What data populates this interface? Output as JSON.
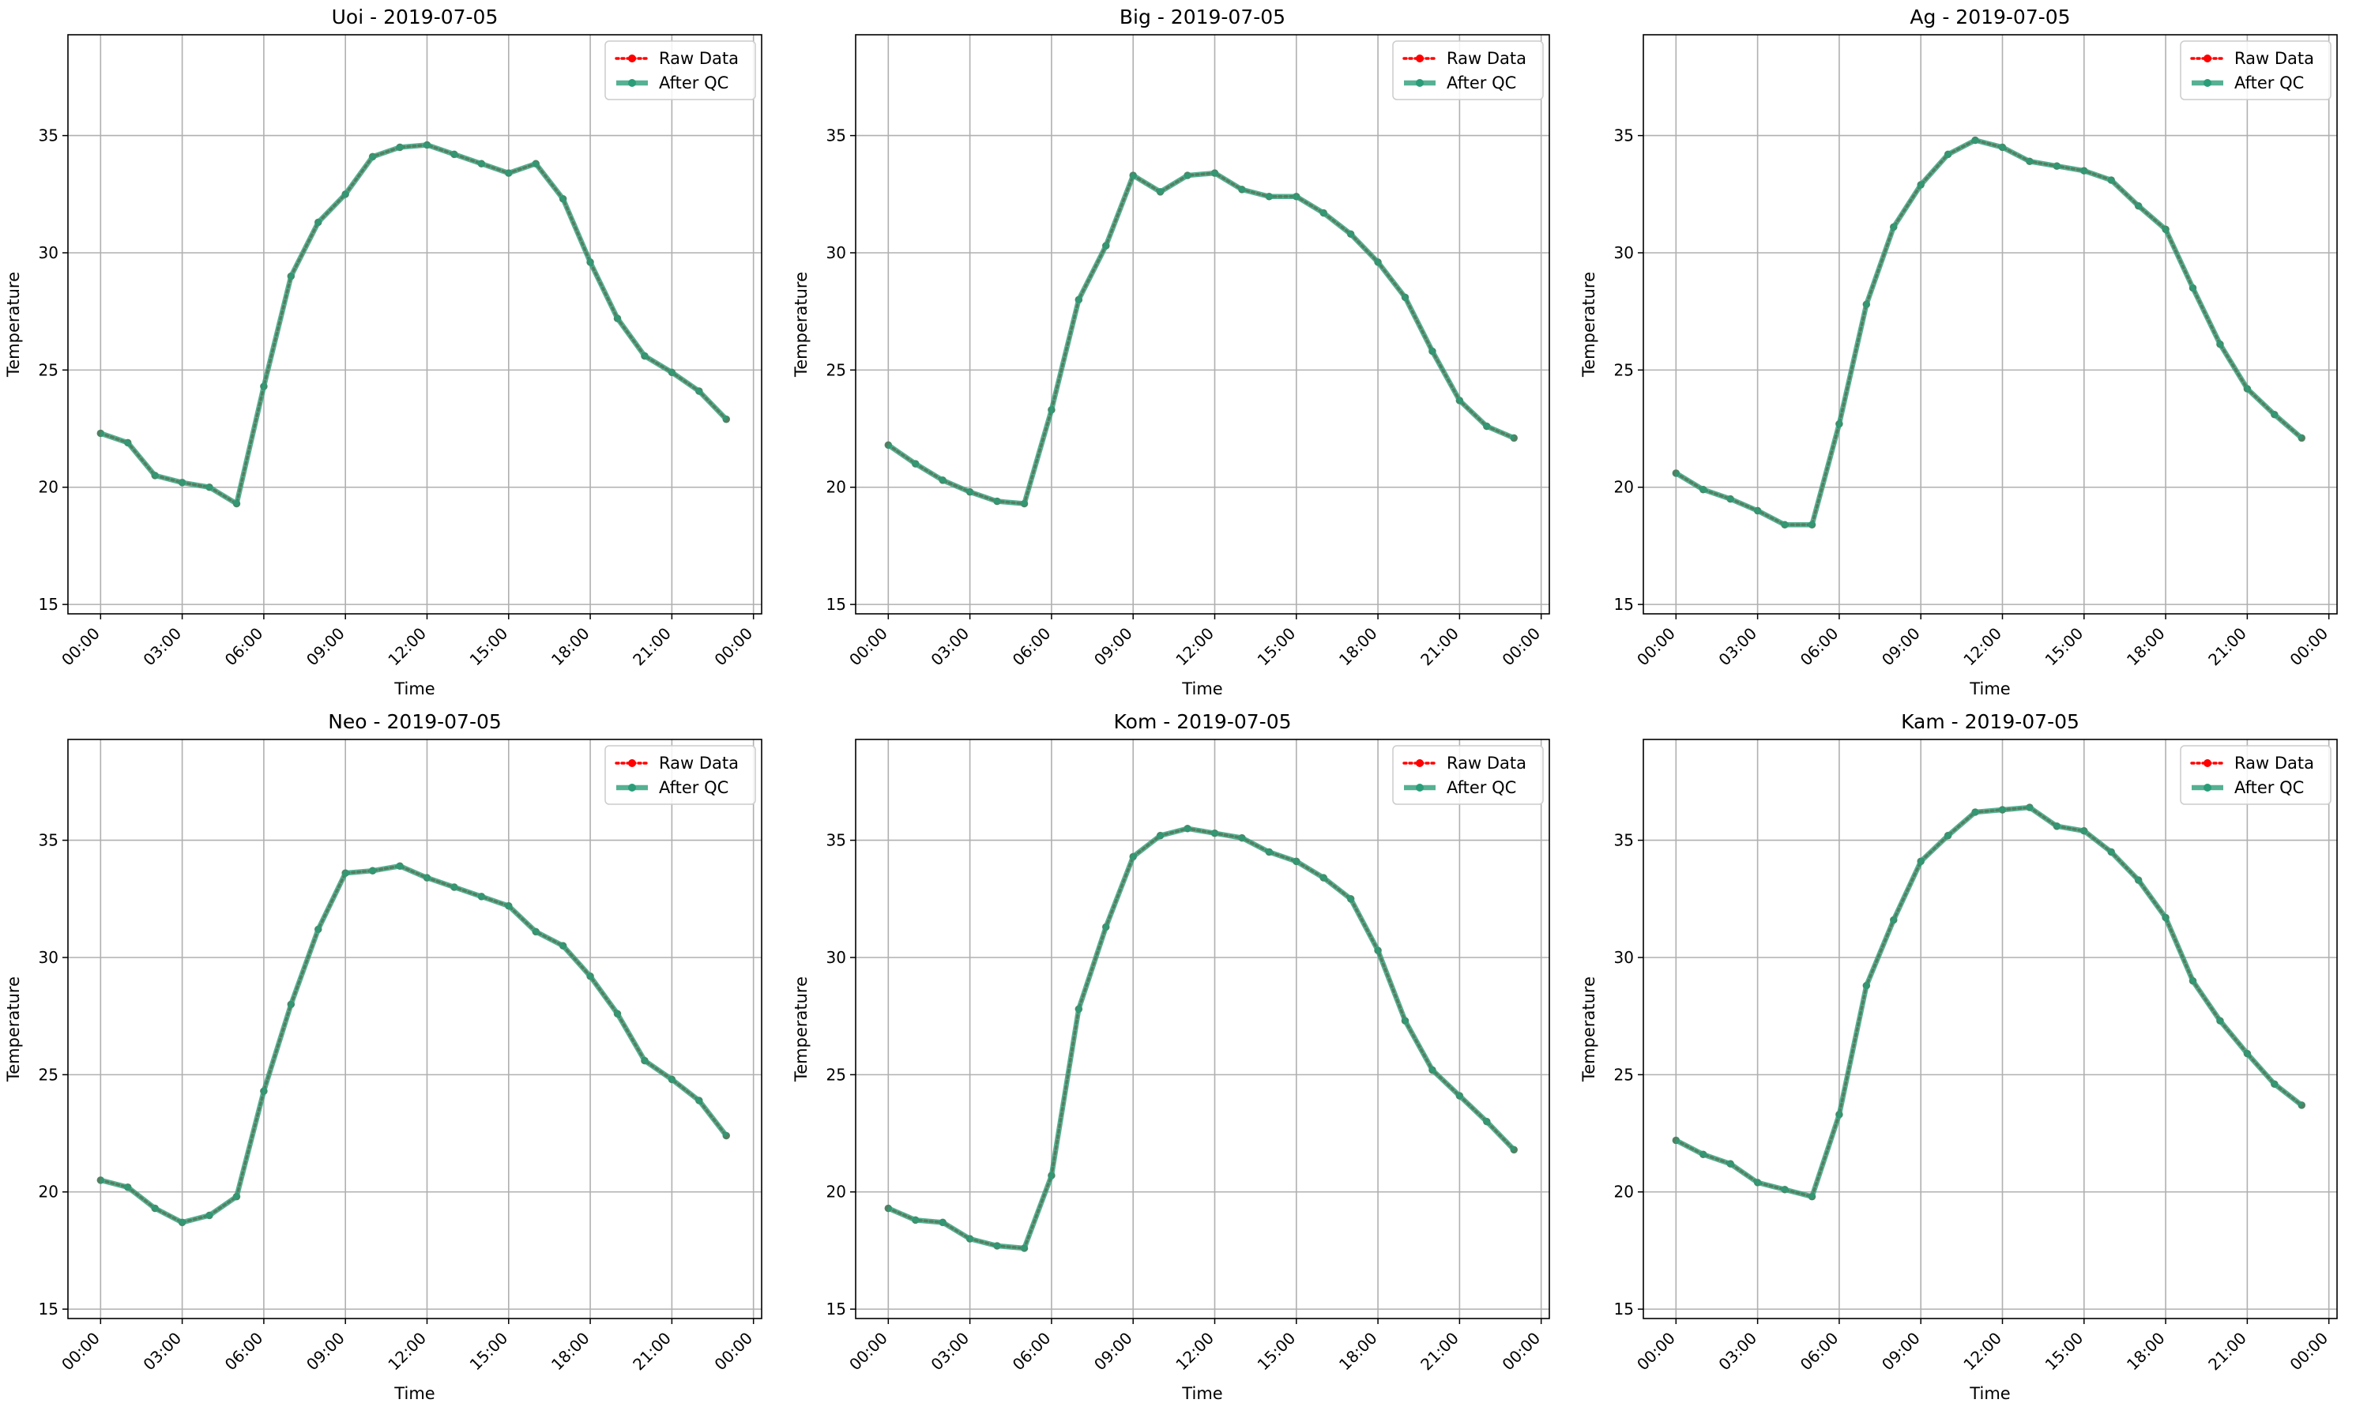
{
  "chart_data": [
    {
      "type": "line",
      "title": "Uoi - 2019-07-05",
      "xlabel": "Time",
      "ylabel": "Temperature",
      "x": [
        0,
        1,
        2,
        3,
        4,
        5,
        6,
        7,
        8,
        9,
        10,
        11,
        12,
        13,
        14,
        15,
        16,
        17,
        18,
        19,
        20,
        21,
        22,
        23
      ],
      "xticks": [
        "00:00",
        "03:00",
        "06:00",
        "09:00",
        "12:00",
        "15:00",
        "18:00",
        "21:00",
        "00:00"
      ],
      "xlim": [
        -1.2,
        24.3
      ],
      "ylim": [
        14.6,
        39.3
      ],
      "yticks": [
        15,
        20,
        25,
        30,
        35
      ],
      "grid": true,
      "legend_loc": "upper right",
      "series": [
        {
          "name": "Raw Data",
          "color": "#ff0000",
          "style": "dotted",
          "values": [
            22.3,
            21.9,
            20.5,
            20.2,
            20.0,
            19.3,
            24.3,
            29.0,
            31.3,
            32.5,
            34.1,
            34.5,
            34.6,
            34.2,
            33.8,
            33.4,
            33.8,
            32.3,
            29.6,
            27.2,
            25.6,
            24.9,
            24.1,
            22.9
          ]
        },
        {
          "name": "After QC",
          "color": "#2a9d78",
          "style": "solid",
          "values": [
            22.3,
            21.9,
            20.5,
            20.2,
            20.0,
            19.3,
            24.3,
            29.0,
            31.3,
            32.5,
            34.1,
            34.5,
            34.6,
            34.2,
            33.8,
            33.4,
            33.8,
            32.3,
            29.6,
            27.2,
            25.6,
            24.9,
            24.1,
            22.9
          ]
        }
      ]
    },
    {
      "type": "line",
      "title": "Big - 2019-07-05",
      "xlabel": "Time",
      "ylabel": "Temperature",
      "x": [
        0,
        1,
        2,
        3,
        4,
        5,
        6,
        7,
        8,
        9,
        10,
        11,
        12,
        13,
        14,
        15,
        16,
        17,
        18,
        19,
        20,
        21,
        22,
        23
      ],
      "xticks": [
        "00:00",
        "03:00",
        "06:00",
        "09:00",
        "12:00",
        "15:00",
        "18:00",
        "21:00",
        "00:00"
      ],
      "xlim": [
        -1.2,
        24.3
      ],
      "ylim": [
        14.6,
        39.3
      ],
      "yticks": [
        15,
        20,
        25,
        30,
        35
      ],
      "grid": true,
      "legend_loc": "upper right",
      "series": [
        {
          "name": "Raw Data",
          "color": "#ff0000",
          "style": "dotted",
          "values": [
            21.8,
            21.0,
            20.3,
            19.8,
            19.4,
            19.3,
            23.3,
            28.0,
            30.3,
            33.3,
            32.6,
            33.3,
            33.4,
            32.7,
            32.4,
            32.4,
            31.7,
            30.8,
            29.6,
            28.1,
            25.8,
            23.7,
            22.6,
            22.1
          ]
        },
        {
          "name": "After QC",
          "color": "#2a9d78",
          "style": "solid",
          "values": [
            21.8,
            21.0,
            20.3,
            19.8,
            19.4,
            19.3,
            23.3,
            28.0,
            30.3,
            33.3,
            32.6,
            33.3,
            33.4,
            32.7,
            32.4,
            32.4,
            31.7,
            30.8,
            29.6,
            28.1,
            25.8,
            23.7,
            22.6,
            22.1
          ]
        }
      ]
    },
    {
      "type": "line",
      "title": "Ag - 2019-07-05",
      "xlabel": "Time",
      "ylabel": "Temperature",
      "x": [
        0,
        1,
        2,
        3,
        4,
        5,
        6,
        7,
        8,
        9,
        10,
        11,
        12,
        13,
        14,
        15,
        16,
        17,
        18,
        19,
        20,
        21,
        22,
        23
      ],
      "xticks": [
        "00:00",
        "03:00",
        "06:00",
        "09:00",
        "12:00",
        "15:00",
        "18:00",
        "21:00",
        "00:00"
      ],
      "xlim": [
        -1.2,
        24.3
      ],
      "ylim": [
        14.6,
        39.3
      ],
      "yticks": [
        15,
        20,
        25,
        30,
        35
      ],
      "grid": true,
      "legend_loc": "upper right",
      "series": [
        {
          "name": "Raw Data",
          "color": "#ff0000",
          "style": "dotted",
          "values": [
            20.6,
            19.9,
            19.5,
            19.0,
            18.4,
            18.4,
            22.7,
            27.8,
            31.1,
            32.9,
            34.2,
            34.8,
            34.5,
            33.9,
            33.7,
            33.5,
            33.1,
            32.0,
            31.0,
            28.5,
            26.1,
            24.2,
            23.1,
            22.1
          ]
        },
        {
          "name": "After QC",
          "color": "#2a9d78",
          "style": "solid",
          "values": [
            20.6,
            19.9,
            19.5,
            19.0,
            18.4,
            18.4,
            22.7,
            27.8,
            31.1,
            32.9,
            34.2,
            34.8,
            34.5,
            33.9,
            33.7,
            33.5,
            33.1,
            32.0,
            31.0,
            28.5,
            26.1,
            24.2,
            23.1,
            22.1
          ]
        }
      ]
    },
    {
      "type": "line",
      "title": "Neo - 2019-07-05",
      "xlabel": "Time",
      "ylabel": "Temperature",
      "x": [
        0,
        1,
        2,
        3,
        4,
        5,
        6,
        7,
        8,
        9,
        10,
        11,
        12,
        13,
        14,
        15,
        16,
        17,
        18,
        19,
        20,
        21,
        22,
        23
      ],
      "xticks": [
        "00:00",
        "03:00",
        "06:00",
        "09:00",
        "12:00",
        "15:00",
        "18:00",
        "21:00",
        "00:00"
      ],
      "xlim": [
        -1.2,
        24.3
      ],
      "ylim": [
        14.6,
        39.3
      ],
      "yticks": [
        15,
        20,
        25,
        30,
        35
      ],
      "grid": true,
      "legend_loc": "upper right",
      "series": [
        {
          "name": "Raw Data",
          "color": "#ff0000",
          "style": "dotted",
          "values": [
            20.5,
            20.2,
            19.3,
            18.7,
            19.0,
            19.8,
            24.3,
            28.0,
            31.2,
            33.6,
            33.7,
            33.9,
            33.4,
            33.0,
            32.6,
            32.2,
            31.1,
            30.5,
            29.2,
            27.6,
            25.6,
            24.8,
            23.9,
            22.4
          ]
        },
        {
          "name": "After QC",
          "color": "#2a9d78",
          "style": "solid",
          "values": [
            20.5,
            20.2,
            19.3,
            18.7,
            19.0,
            19.8,
            24.3,
            28.0,
            31.2,
            33.6,
            33.7,
            33.9,
            33.4,
            33.0,
            32.6,
            32.2,
            31.1,
            30.5,
            29.2,
            27.6,
            25.6,
            24.8,
            23.9,
            22.4
          ]
        }
      ]
    },
    {
      "type": "line",
      "title": "Kom - 2019-07-05",
      "xlabel": "Time",
      "ylabel": "Temperature",
      "x": [
        0,
        1,
        2,
        3,
        4,
        5,
        6,
        7,
        8,
        9,
        10,
        11,
        12,
        13,
        14,
        15,
        16,
        17,
        18,
        19,
        20,
        21,
        22,
        23
      ],
      "xticks": [
        "00:00",
        "03:00",
        "06:00",
        "09:00",
        "12:00",
        "15:00",
        "18:00",
        "21:00",
        "00:00"
      ],
      "xlim": [
        -1.2,
        24.3
      ],
      "ylim": [
        14.6,
        39.3
      ],
      "yticks": [
        15,
        20,
        25,
        30,
        35
      ],
      "grid": true,
      "legend_loc": "upper right",
      "series": [
        {
          "name": "Raw Data",
          "color": "#ff0000",
          "style": "dotted",
          "values": [
            19.3,
            18.8,
            18.7,
            18.0,
            17.7,
            17.6,
            20.7,
            27.8,
            31.3,
            34.3,
            35.2,
            35.5,
            35.3,
            35.1,
            34.5,
            34.1,
            33.4,
            32.5,
            30.3,
            27.3,
            25.2,
            24.1,
            23.0,
            21.8
          ]
        },
        {
          "name": "After QC",
          "color": "#2a9d78",
          "style": "solid",
          "values": [
            19.3,
            18.8,
            18.7,
            18.0,
            17.7,
            17.6,
            20.7,
            27.8,
            31.3,
            34.3,
            35.2,
            35.5,
            35.3,
            35.1,
            34.5,
            34.1,
            33.4,
            32.5,
            30.3,
            27.3,
            25.2,
            24.1,
            23.0,
            21.8
          ]
        }
      ]
    },
    {
      "type": "line",
      "title": "Kam - 2019-07-05",
      "xlabel": "Time",
      "ylabel": "Temperature",
      "x": [
        0,
        1,
        2,
        3,
        4,
        5,
        6,
        7,
        8,
        9,
        10,
        11,
        12,
        13,
        14,
        15,
        16,
        17,
        18,
        19,
        20,
        21,
        22,
        23
      ],
      "xticks": [
        "00:00",
        "03:00",
        "06:00",
        "09:00",
        "12:00",
        "15:00",
        "18:00",
        "21:00",
        "00:00"
      ],
      "xlim": [
        -1.2,
        24.3
      ],
      "ylim": [
        14.6,
        39.3
      ],
      "yticks": [
        15,
        20,
        25,
        30,
        35
      ],
      "grid": true,
      "legend_loc": "upper right",
      "series": [
        {
          "name": "Raw Data",
          "color": "#ff0000",
          "style": "dotted",
          "values": [
            22.2,
            21.6,
            21.2,
            20.4,
            20.1,
            19.8,
            23.3,
            28.8,
            31.6,
            34.1,
            35.2,
            36.2,
            36.3,
            36.4,
            35.6,
            35.4,
            34.5,
            33.3,
            31.7,
            29.0,
            27.3,
            25.9,
            24.6,
            23.7
          ]
        },
        {
          "name": "After QC",
          "color": "#2a9d78",
          "style": "solid",
          "values": [
            22.2,
            21.6,
            21.2,
            20.4,
            20.1,
            19.8,
            23.3,
            28.8,
            31.6,
            34.1,
            35.2,
            36.2,
            36.3,
            36.4,
            35.6,
            35.4,
            34.5,
            33.3,
            31.7,
            29.0,
            27.3,
            25.9,
            24.6,
            23.7
          ]
        }
      ]
    }
  ]
}
